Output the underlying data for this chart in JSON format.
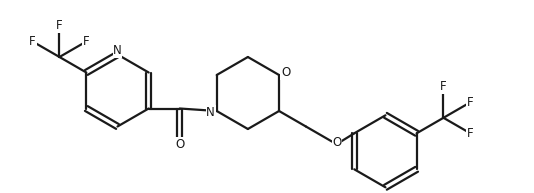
{
  "background_color": "#ffffff",
  "line_color": "#1a1a1a",
  "line_width": 1.6,
  "text_color": "#1a1a1a",
  "font_size": 8.5,
  "figsize": [
    5.34,
    1.93
  ],
  "dpi": 100,
  "xlim": [
    0,
    10.68
  ],
  "ylim": [
    0,
    3.86
  ]
}
